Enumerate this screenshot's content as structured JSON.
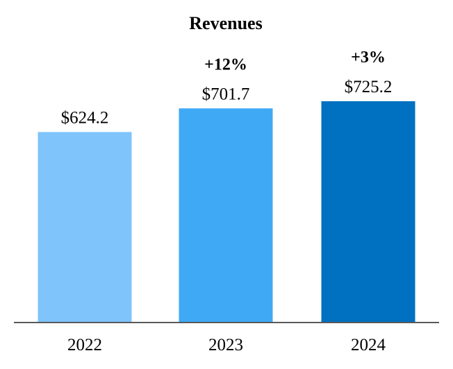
{
  "chart_data": {
    "type": "bar",
    "title": "Revenues",
    "xlabel": "",
    "ylabel": "",
    "categories": [
      "2022",
      "2023",
      "2024"
    ],
    "values": [
      624.2,
      701.7,
      725.2
    ],
    "value_labels": [
      "$624.2",
      "$701.7",
      "$725.2"
    ],
    "growth_labels": [
      "",
      "+12%",
      "+3%"
    ],
    "colors": [
      "#7FC4FB",
      "#3FA9F5",
      "#0070C0"
    ],
    "axis_color": "#595959",
    "ylim": [
      0,
      750
    ],
    "grid": false,
    "legend": "none"
  }
}
